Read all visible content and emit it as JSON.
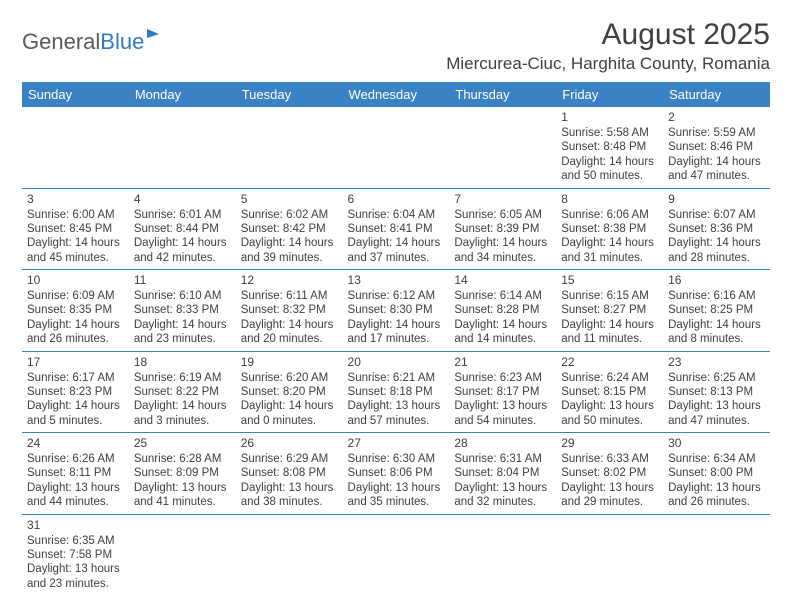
{
  "logo": {
    "part1": "General",
    "part2": "Blue"
  },
  "title": "August 2025",
  "location": "Miercurea-Ciuc, Harghita County, Romania",
  "colors": {
    "header_bg": "#3b82c4",
    "header_text": "#ffffff",
    "border": "#3b82c4",
    "text": "#404040",
    "logo_gray": "#5a5a5a",
    "logo_blue": "#2e7cc0",
    "page_bg": "#ffffff"
  },
  "day_headers": [
    "Sunday",
    "Monday",
    "Tuesday",
    "Wednesday",
    "Thursday",
    "Friday",
    "Saturday"
  ],
  "weeks": [
    [
      null,
      null,
      null,
      null,
      null,
      {
        "n": "1",
        "sr": "Sunrise: 5:58 AM",
        "ss": "Sunset: 8:48 PM",
        "d1": "Daylight: 14 hours",
        "d2": "and 50 minutes."
      },
      {
        "n": "2",
        "sr": "Sunrise: 5:59 AM",
        "ss": "Sunset: 8:46 PM",
        "d1": "Daylight: 14 hours",
        "d2": "and 47 minutes."
      }
    ],
    [
      {
        "n": "3",
        "sr": "Sunrise: 6:00 AM",
        "ss": "Sunset: 8:45 PM",
        "d1": "Daylight: 14 hours",
        "d2": "and 45 minutes."
      },
      {
        "n": "4",
        "sr": "Sunrise: 6:01 AM",
        "ss": "Sunset: 8:44 PM",
        "d1": "Daylight: 14 hours",
        "d2": "and 42 minutes."
      },
      {
        "n": "5",
        "sr": "Sunrise: 6:02 AM",
        "ss": "Sunset: 8:42 PM",
        "d1": "Daylight: 14 hours",
        "d2": "and 39 minutes."
      },
      {
        "n": "6",
        "sr": "Sunrise: 6:04 AM",
        "ss": "Sunset: 8:41 PM",
        "d1": "Daylight: 14 hours",
        "d2": "and 37 minutes."
      },
      {
        "n": "7",
        "sr": "Sunrise: 6:05 AM",
        "ss": "Sunset: 8:39 PM",
        "d1": "Daylight: 14 hours",
        "d2": "and 34 minutes."
      },
      {
        "n": "8",
        "sr": "Sunrise: 6:06 AM",
        "ss": "Sunset: 8:38 PM",
        "d1": "Daylight: 14 hours",
        "d2": "and 31 minutes."
      },
      {
        "n": "9",
        "sr": "Sunrise: 6:07 AM",
        "ss": "Sunset: 8:36 PM",
        "d1": "Daylight: 14 hours",
        "d2": "and 28 minutes."
      }
    ],
    [
      {
        "n": "10",
        "sr": "Sunrise: 6:09 AM",
        "ss": "Sunset: 8:35 PM",
        "d1": "Daylight: 14 hours",
        "d2": "and 26 minutes."
      },
      {
        "n": "11",
        "sr": "Sunrise: 6:10 AM",
        "ss": "Sunset: 8:33 PM",
        "d1": "Daylight: 14 hours",
        "d2": "and 23 minutes."
      },
      {
        "n": "12",
        "sr": "Sunrise: 6:11 AM",
        "ss": "Sunset: 8:32 PM",
        "d1": "Daylight: 14 hours",
        "d2": "and 20 minutes."
      },
      {
        "n": "13",
        "sr": "Sunrise: 6:12 AM",
        "ss": "Sunset: 8:30 PM",
        "d1": "Daylight: 14 hours",
        "d2": "and 17 minutes."
      },
      {
        "n": "14",
        "sr": "Sunrise: 6:14 AM",
        "ss": "Sunset: 8:28 PM",
        "d1": "Daylight: 14 hours",
        "d2": "and 14 minutes."
      },
      {
        "n": "15",
        "sr": "Sunrise: 6:15 AM",
        "ss": "Sunset: 8:27 PM",
        "d1": "Daylight: 14 hours",
        "d2": "and 11 minutes."
      },
      {
        "n": "16",
        "sr": "Sunrise: 6:16 AM",
        "ss": "Sunset: 8:25 PM",
        "d1": "Daylight: 14 hours",
        "d2": "and 8 minutes."
      }
    ],
    [
      {
        "n": "17",
        "sr": "Sunrise: 6:17 AM",
        "ss": "Sunset: 8:23 PM",
        "d1": "Daylight: 14 hours",
        "d2": "and 5 minutes."
      },
      {
        "n": "18",
        "sr": "Sunrise: 6:19 AM",
        "ss": "Sunset: 8:22 PM",
        "d1": "Daylight: 14 hours",
        "d2": "and 3 minutes."
      },
      {
        "n": "19",
        "sr": "Sunrise: 6:20 AM",
        "ss": "Sunset: 8:20 PM",
        "d1": "Daylight: 14 hours",
        "d2": "and 0 minutes."
      },
      {
        "n": "20",
        "sr": "Sunrise: 6:21 AM",
        "ss": "Sunset: 8:18 PM",
        "d1": "Daylight: 13 hours",
        "d2": "and 57 minutes."
      },
      {
        "n": "21",
        "sr": "Sunrise: 6:23 AM",
        "ss": "Sunset: 8:17 PM",
        "d1": "Daylight: 13 hours",
        "d2": "and 54 minutes."
      },
      {
        "n": "22",
        "sr": "Sunrise: 6:24 AM",
        "ss": "Sunset: 8:15 PM",
        "d1": "Daylight: 13 hours",
        "d2": "and 50 minutes."
      },
      {
        "n": "23",
        "sr": "Sunrise: 6:25 AM",
        "ss": "Sunset: 8:13 PM",
        "d1": "Daylight: 13 hours",
        "d2": "and 47 minutes."
      }
    ],
    [
      {
        "n": "24",
        "sr": "Sunrise: 6:26 AM",
        "ss": "Sunset: 8:11 PM",
        "d1": "Daylight: 13 hours",
        "d2": "and 44 minutes."
      },
      {
        "n": "25",
        "sr": "Sunrise: 6:28 AM",
        "ss": "Sunset: 8:09 PM",
        "d1": "Daylight: 13 hours",
        "d2": "and 41 minutes."
      },
      {
        "n": "26",
        "sr": "Sunrise: 6:29 AM",
        "ss": "Sunset: 8:08 PM",
        "d1": "Daylight: 13 hours",
        "d2": "and 38 minutes."
      },
      {
        "n": "27",
        "sr": "Sunrise: 6:30 AM",
        "ss": "Sunset: 8:06 PM",
        "d1": "Daylight: 13 hours",
        "d2": "and 35 minutes."
      },
      {
        "n": "28",
        "sr": "Sunrise: 6:31 AM",
        "ss": "Sunset: 8:04 PM",
        "d1": "Daylight: 13 hours",
        "d2": "and 32 minutes."
      },
      {
        "n": "29",
        "sr": "Sunrise: 6:33 AM",
        "ss": "Sunset: 8:02 PM",
        "d1": "Daylight: 13 hours",
        "d2": "and 29 minutes."
      },
      {
        "n": "30",
        "sr": "Sunrise: 6:34 AM",
        "ss": "Sunset: 8:00 PM",
        "d1": "Daylight: 13 hours",
        "d2": "and 26 minutes."
      }
    ],
    [
      {
        "n": "31",
        "sr": "Sunrise: 6:35 AM",
        "ss": "Sunset: 7:58 PM",
        "d1": "Daylight: 13 hours",
        "d2": "and 23 minutes."
      },
      null,
      null,
      null,
      null,
      null,
      null
    ]
  ]
}
